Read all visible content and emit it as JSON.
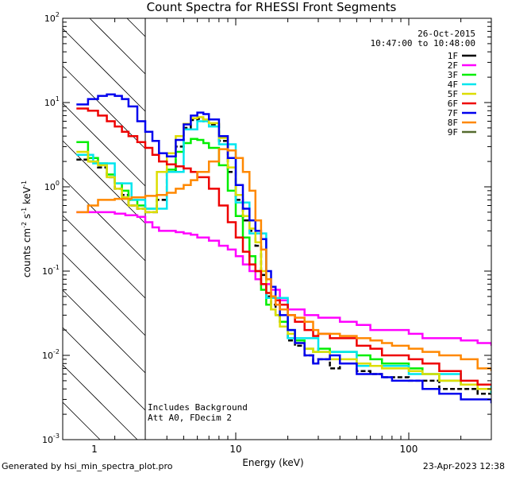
{
  "chart_data": {
    "type": "line",
    "title": "Count Spectra for RHESSI Front Segments",
    "xlabel": "Energy (keV)",
    "ylabel_text": "counts cm",
    "ylabel_sup1": "-2",
    "ylabel_mid1": " s",
    "ylabel_sup2": "-1",
    "ylabel_mid2": " keV",
    "ylabel_sup3": "-1",
    "x_scale": "log",
    "y_scale": "log",
    "xlim": [
      1,
      300
    ],
    "ylim": [
      0.001,
      100
    ],
    "x_ticks": [
      {
        "value": 10,
        "label": "10"
      },
      {
        "value": 100,
        "label": "100"
      }
    ],
    "y_ticks": [
      {
        "value": 0.001,
        "base": "10",
        "exp": "-3"
      },
      {
        "value": 0.01,
        "base": "10",
        "exp": "-2"
      },
      {
        "value": 0.1,
        "base": "10",
        "exp": "-1"
      },
      {
        "value": 1,
        "base": "10",
        "exp": "0"
      },
      {
        "value": 10,
        "base": "10",
        "exp": "1"
      },
      {
        "value": 100,
        "base": "10",
        "exp": "2"
      }
    ],
    "shaded_region_keV": [
      1,
      3
    ],
    "attenuator_line_keV": 3,
    "date": "26-Oct-2015",
    "time_range": "10:47:00 to 10:48:00",
    "annotations": [
      "Includes Background",
      "Att A0, FDecim 2"
    ],
    "series": [
      {
        "name": "1F",
        "color": "#000000",
        "dashed": true,
        "x": [
          1.2,
          1.4,
          1.6,
          1.8,
          2.0,
          2.2,
          2.4,
          2.7,
          3.0,
          3.5,
          4.0,
          4.5,
          5.0,
          5.5,
          6.0,
          6.5,
          7.0,
          8.0,
          9.0,
          10,
          11,
          12,
          13,
          14,
          15,
          16,
          17,
          18,
          20,
          22,
          25,
          28,
          30,
          35,
          40,
          50,
          60,
          70,
          80,
          100,
          120,
          150,
          200,
          250,
          300
        ],
        "y": [
          2.1,
          2.0,
          1.7,
          1.3,
          0.95,
          0.8,
          0.6,
          0.55,
          0.5,
          0.7,
          1.5,
          3.0,
          5.0,
          6.2,
          6.4,
          6.0,
          5.5,
          3.5,
          1.5,
          0.7,
          0.4,
          0.3,
          0.2,
          0.09,
          0.05,
          0.04,
          0.03,
          0.025,
          0.015,
          0.013,
          0.01,
          0.008,
          0.009,
          0.007,
          0.008,
          0.0065,
          0.006,
          0.0055,
          0.0055,
          0.005,
          0.005,
          0.004,
          0.004,
          0.0035,
          0.0035
        ]
      },
      {
        "name": "2F",
        "color": "#ff00ff",
        "dashed": false,
        "x": [
          1.2,
          1.5,
          1.8,
          2.0,
          2.3,
          2.7,
          3.0,
          3.3,
          3.6,
          4.0,
          4.5,
          5.0,
          5.5,
          6.0,
          7.0,
          8.0,
          9.0,
          10,
          11,
          12,
          13,
          14,
          16,
          18,
          20,
          25,
          30,
          40,
          50,
          60,
          80,
          100,
          120,
          150,
          200,
          250,
          300
        ],
        "y": [
          0.5,
          0.5,
          0.5,
          0.48,
          0.46,
          0.44,
          0.38,
          0.33,
          0.3,
          0.3,
          0.29,
          0.28,
          0.27,
          0.25,
          0.23,
          0.2,
          0.18,
          0.15,
          0.12,
          0.1,
          0.08,
          0.07,
          0.06,
          0.045,
          0.035,
          0.03,
          0.028,
          0.025,
          0.023,
          0.02,
          0.02,
          0.018,
          0.016,
          0.016,
          0.015,
          0.014,
          0.013
        ]
      },
      {
        "name": "3F",
        "color": "#00ee00",
        "dashed": false,
        "x": [
          1.2,
          1.4,
          1.6,
          1.8,
          2.0,
          2.2,
          2.4,
          2.7,
          3.0,
          3.5,
          4.0,
          4.5,
          5.0,
          5.5,
          6.0,
          6.5,
          7.0,
          8.0,
          9.0,
          10,
          11,
          12,
          13,
          14,
          15,
          16,
          17,
          18,
          20,
          22,
          25,
          28,
          30,
          35,
          40,
          50,
          60,
          70,
          80,
          100,
          120,
          150,
          200,
          250,
          300
        ],
        "y": [
          3.4,
          2.2,
          1.9,
          1.4,
          1.1,
          0.9,
          0.7,
          0.6,
          0.55,
          0.8,
          1.6,
          2.6,
          3.3,
          3.7,
          3.6,
          3.3,
          2.9,
          1.8,
          0.9,
          0.45,
          0.25,
          0.15,
          0.1,
          0.06,
          0.04,
          0.035,
          0.03,
          0.025,
          0.02,
          0.015,
          0.012,
          0.011,
          0.012,
          0.011,
          0.011,
          0.01,
          0.009,
          0.008,
          0.008,
          0.007,
          0.006,
          0.005,
          0.0045,
          0.004,
          0.0035
        ]
      },
      {
        "name": "4F",
        "color": "#00e5ee",
        "dashed": false,
        "x": [
          1.2,
          1.5,
          2.0,
          2.5,
          3.0,
          4.0,
          5.0,
          6.0,
          7.0,
          8.0,
          10,
          12,
          15,
          20,
          30,
          50,
          100,
          200,
          300
        ],
        "y": [
          2.4,
          1.9,
          1.1,
          0.7,
          0.55,
          1.5,
          4.8,
          6.0,
          5.2,
          3.2,
          0.65,
          0.28,
          0.048,
          0.016,
          0.011,
          0.0075,
          0.006,
          0.0045,
          0.0035
        ]
      },
      {
        "name": "5F",
        "color": "#dddd00",
        "dashed": false,
        "x": [
          1.2,
          1.4,
          1.6,
          1.8,
          2.0,
          2.2,
          2.4,
          2.7,
          3.0,
          3.5,
          4.0,
          4.5,
          5.0,
          5.5,
          6.0,
          6.5,
          7.0,
          8.0,
          9.0,
          10,
          11,
          12,
          13,
          14,
          15,
          16,
          17,
          18,
          20,
          22,
          25,
          28,
          30,
          35,
          40,
          50,
          60,
          70,
          80,
          100,
          120,
          150,
          200,
          250,
          300
        ],
        "y": [
          2.6,
          2.0,
          1.8,
          1.3,
          0.95,
          0.75,
          0.6,
          0.55,
          0.5,
          1.5,
          2.5,
          4.0,
          5.6,
          6.5,
          6.7,
          6.3,
          5.7,
          3.8,
          1.7,
          0.8,
          0.45,
          0.32,
          0.22,
          0.1,
          0.055,
          0.035,
          0.03,
          0.022,
          0.018,
          0.014,
          0.012,
          0.011,
          0.011,
          0.009,
          0.009,
          0.008,
          0.0075,
          0.007,
          0.007,
          0.0065,
          0.006,
          0.005,
          0.0045,
          0.004,
          0.0038
        ]
      },
      {
        "name": "6F",
        "color": "#ee0000",
        "dashed": false,
        "x": [
          1.2,
          1.4,
          1.6,
          1.8,
          2.0,
          2.2,
          2.4,
          2.7,
          3.0,
          3.3,
          3.6,
          4.0,
          4.5,
          5.0,
          5.5,
          6.0,
          7.0,
          8.0,
          9.0,
          10,
          11,
          12,
          13,
          14,
          15,
          16,
          17,
          18,
          20,
          22,
          25,
          28,
          30,
          35,
          40,
          50,
          60,
          70,
          80,
          100,
          120,
          150,
          200,
          250,
          300
        ],
        "y": [
          8.5,
          8.0,
          7.0,
          6.0,
          5.2,
          4.5,
          4.0,
          3.4,
          2.9,
          2.4,
          2.0,
          1.85,
          1.75,
          1.65,
          1.5,
          1.3,
          0.95,
          0.6,
          0.38,
          0.25,
          0.17,
          0.12,
          0.1,
          0.07,
          0.055,
          0.05,
          0.045,
          0.04,
          0.03,
          0.025,
          0.02,
          0.017,
          0.018,
          0.016,
          0.016,
          0.013,
          0.012,
          0.01,
          0.01,
          0.009,
          0.008,
          0.0065,
          0.005,
          0.0045,
          0.0045
        ]
      },
      {
        "name": "7F",
        "color": "#0000ee",
        "dashed": false,
        "x": [
          1.2,
          1.4,
          1.6,
          1.8,
          2.0,
          2.2,
          2.4,
          2.7,
          3.0,
          3.3,
          3.6,
          4.0,
          4.5,
          5.0,
          5.5,
          6.0,
          6.5,
          7.0,
          8.0,
          9.0,
          10,
          11,
          12,
          13,
          14,
          15,
          16,
          17,
          18,
          20,
          22,
          25,
          28,
          30,
          35,
          40,
          50,
          60,
          70,
          80,
          100,
          120,
          150,
          200,
          250,
          300
        ],
        "y": [
          9.5,
          11,
          12,
          12.5,
          12,
          11,
          9,
          6,
          4.5,
          3.5,
          2.5,
          2.3,
          3.6,
          5.5,
          7.0,
          7.6,
          7.3,
          6.3,
          4.0,
          2.2,
          1.05,
          0.55,
          0.4,
          0.3,
          0.24,
          0.1,
          0.065,
          0.04,
          0.03,
          0.02,
          0.014,
          0.01,
          0.008,
          0.009,
          0.01,
          0.008,
          0.006,
          0.006,
          0.0055,
          0.005,
          0.005,
          0.004,
          0.0035,
          0.003,
          0.003,
          0.0027
        ]
      },
      {
        "name": "8F",
        "color": "#ff8800",
        "dashed": false,
        "x": [
          1.2,
          1.4,
          1.6,
          2.0,
          2.5,
          3.0,
          3.5,
          4.0,
          4.5,
          5.0,
          5.5,
          6.0,
          7.0,
          8.0,
          9.0,
          10,
          11,
          12,
          13,
          14,
          15,
          16,
          17,
          18,
          20,
          22,
          25,
          28,
          30,
          35,
          40,
          50,
          60,
          70,
          80,
          100,
          120,
          150,
          200,
          250,
          300
        ],
        "y": [
          0.5,
          0.6,
          0.7,
          0.72,
          0.75,
          0.78,
          0.8,
          0.85,
          0.95,
          1.05,
          1.2,
          1.5,
          2.0,
          2.8,
          2.7,
          2.2,
          1.5,
          0.9,
          0.4,
          0.18,
          0.08,
          0.05,
          0.04,
          0.035,
          0.03,
          0.028,
          0.025,
          0.02,
          0.018,
          0.018,
          0.017,
          0.016,
          0.015,
          0.014,
          0.013,
          0.012,
          0.011,
          0.01,
          0.009,
          0.007,
          0.0065
        ]
      },
      {
        "name": "9F",
        "color": "#556b2f",
        "dashed": false,
        "x": [],
        "y": []
      }
    ]
  },
  "footer": {
    "left": "Generated by hsi_min_spectra_plot.pro",
    "right": "23-Apr-2023 12:38"
  }
}
